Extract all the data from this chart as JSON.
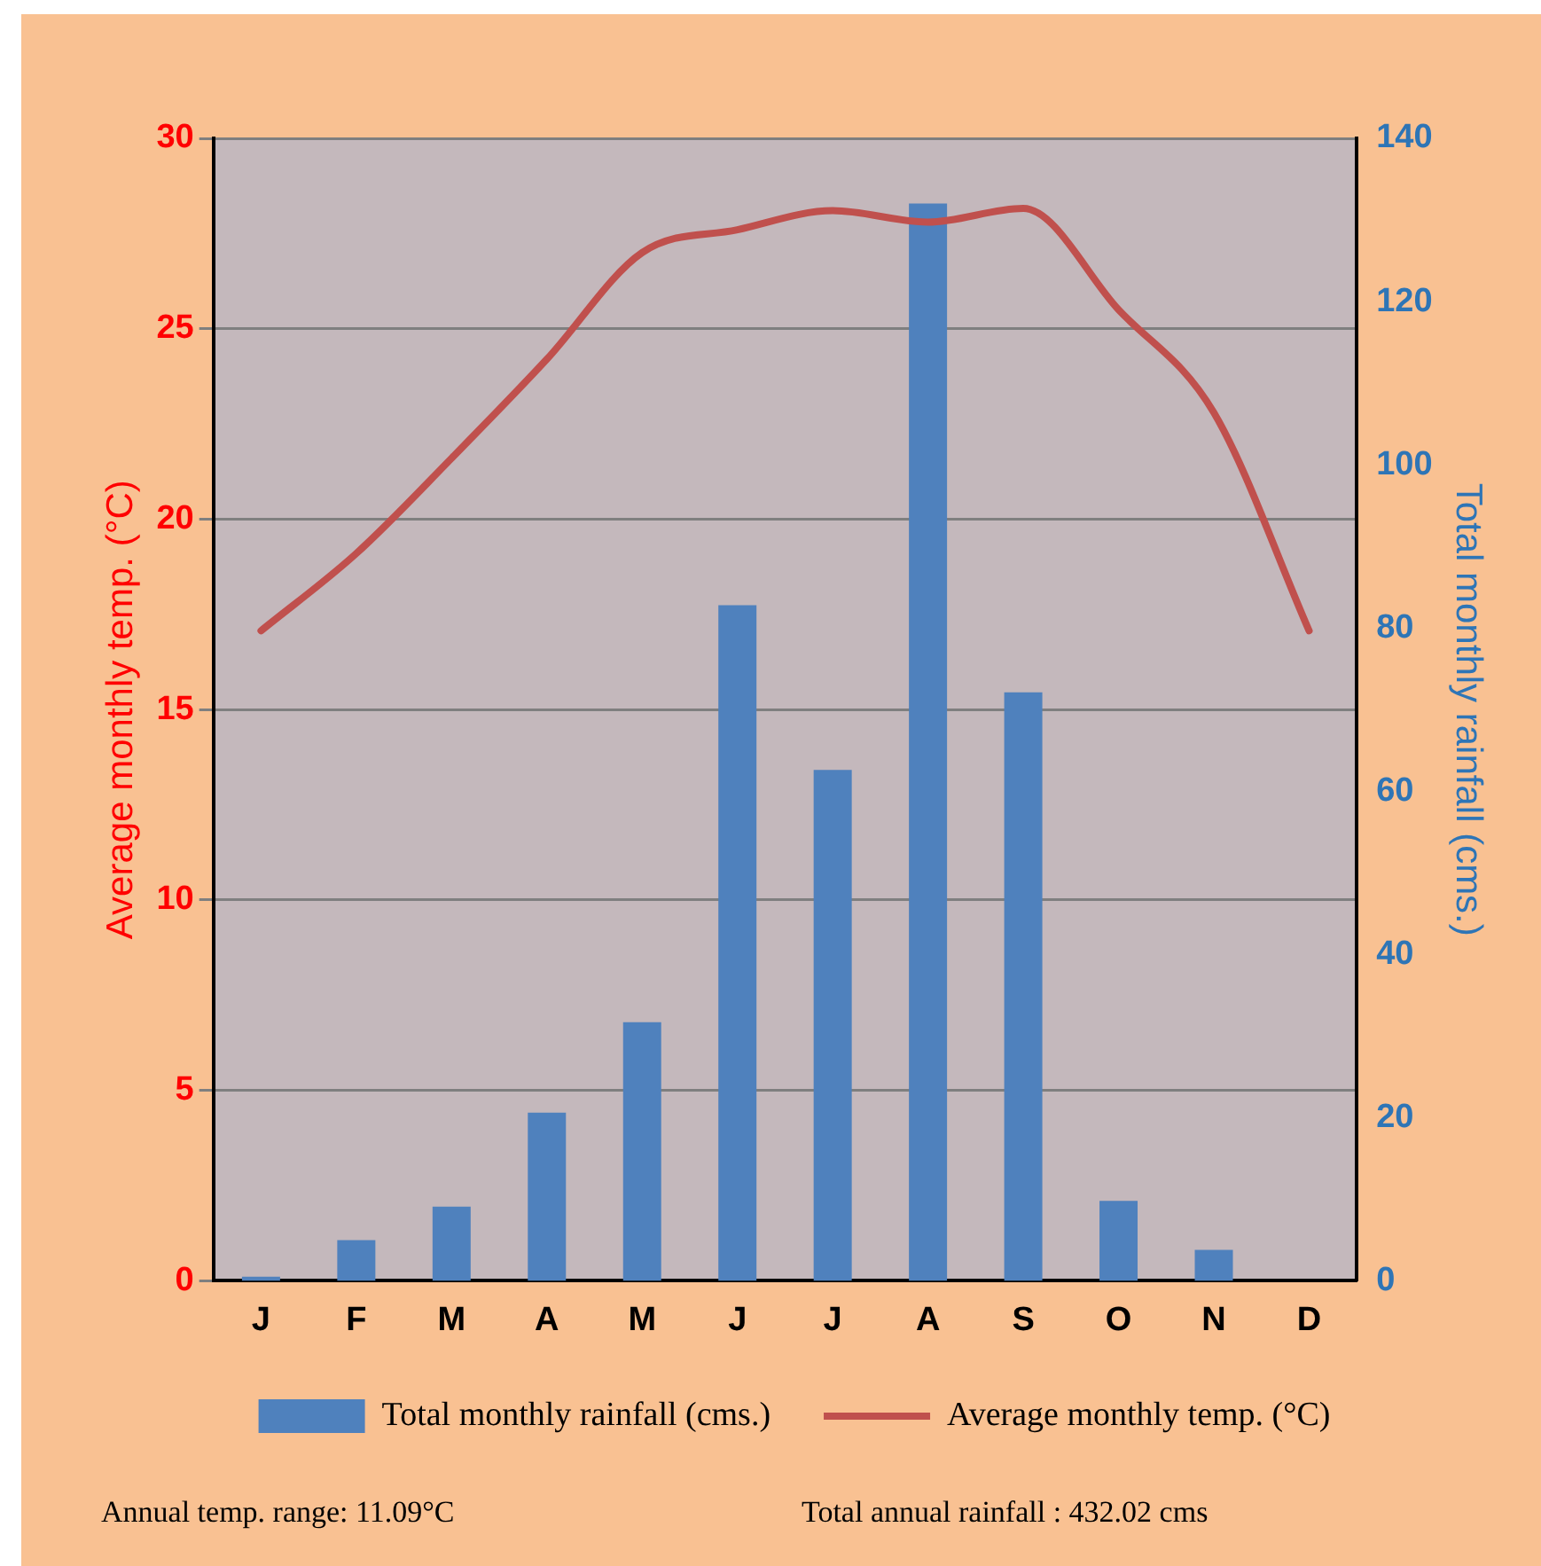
{
  "chart_data": {
    "type": "bar",
    "categories": [
      "J",
      "F",
      "M",
      "A",
      "M",
      "J",
      "J",
      "A",
      "S",
      "O",
      "N",
      "D"
    ],
    "series": [
      {
        "name": "Total monthly rainfall (cms.)",
        "axis": "y2",
        "color": "#4f81bd",
        "values": [
          0.5,
          5,
          9.1,
          20.6,
          31.7,
          82.8,
          62.6,
          132,
          72.1,
          9.8,
          3.8,
          0
        ]
      },
      {
        "name": "Average monthly temp. (°C)",
        "type": "line",
        "color": "#c0504d",
        "values": [
          17.07,
          19.1,
          21.6,
          24.2,
          27,
          27.6,
          28.1,
          27.8,
          28.16,
          25.5,
          22.8,
          17.07
        ]
      }
    ],
    "ylabel": "Average monthly temp. (°C)",
    "y2label": "Total monthly rainfall (cms.)",
    "ylim": [
      0,
      30
    ],
    "yticks": [
      0,
      5,
      10,
      15,
      20,
      25,
      30
    ],
    "y2lim": [
      0,
      140
    ],
    "y2ticks": [
      0,
      20,
      40,
      60,
      80,
      100,
      120,
      140
    ],
    "grid": "y",
    "legend": "bottom",
    "marker": "none",
    "line_style": "solid",
    "annotations": [
      "Annual temp. range: 11.09°C",
      "Total annual rainfall : 432.02 cms"
    ]
  }
}
